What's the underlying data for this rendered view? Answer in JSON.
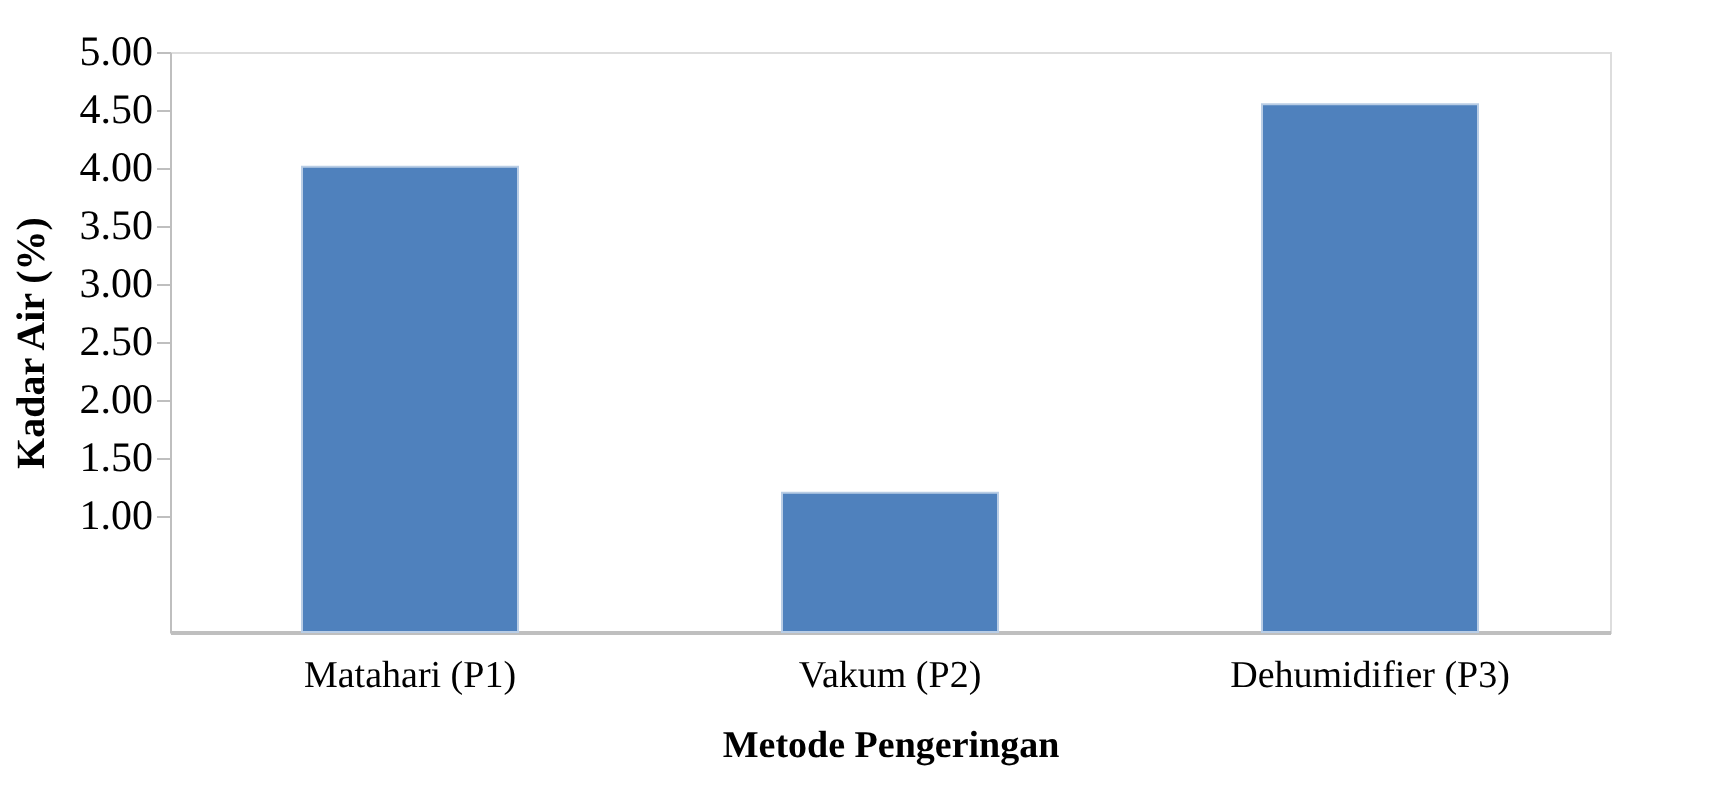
{
  "chart_data": {
    "type": "bar",
    "xlabel": "Metode Pengeringan",
    "ylabel": "Kadar Air (%)",
    "categories": [
      "Matahari (P1)",
      "Vakum (P2)",
      "Dehumidifier (P3)"
    ],
    "values": [
      4.01,
      1.2,
      4.55
    ],
    "color": "#4f81bd",
    "ylim": [
      0,
      5
    ],
    "yticks": [
      {
        "value": 1,
        "label": "1.00"
      },
      {
        "value": 1.5,
        "label": "1.50"
      },
      {
        "value": 2,
        "label": "2.00"
      },
      {
        "value": 2.5,
        "label": "2.50"
      },
      {
        "value": 3,
        "label": "3.00"
      },
      {
        "value": 3.5,
        "label": "3.50"
      },
      {
        "value": 4,
        "label": "4.00"
      },
      {
        "value": 4.5,
        "label": "4.50"
      },
      {
        "value": 5,
        "label": "5.00"
      }
    ],
    "grid": false
  }
}
